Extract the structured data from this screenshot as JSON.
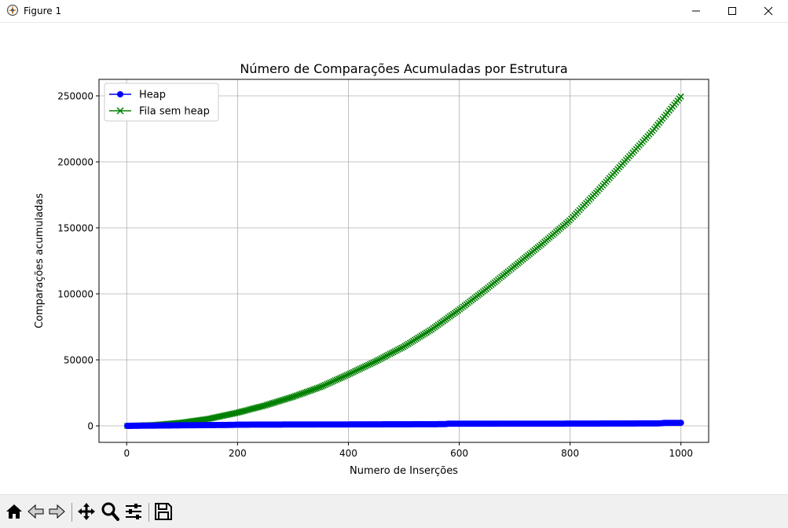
{
  "window": {
    "title": "Figure 1",
    "controls": [
      "minimize",
      "maximize",
      "close"
    ]
  },
  "toolbar": {
    "icons": [
      "home-icon",
      "back-icon",
      "forward-icon",
      "pan-icon",
      "zoom-icon",
      "configure-subplots-icon",
      "save-icon"
    ]
  },
  "chart_data": {
    "type": "line",
    "title": "Número de Comparações Acumuladas por Estrutura",
    "xlabel": "Numero de Inserções",
    "ylabel": "Comparações acumuladas",
    "xlim": [
      -50,
      1050
    ],
    "ylim": [
      -12500,
      262500
    ],
    "xticks": [
      0,
      200,
      400,
      600,
      800,
      1000
    ],
    "xtick_labels": [
      "0",
      "200",
      "400",
      "600",
      "800",
      "1000"
    ],
    "yticks": [
      0,
      50000,
      100000,
      150000,
      200000,
      250000
    ],
    "ytick_labels": [
      "0",
      "50000",
      "100000",
      "150000",
      "200000",
      "250000"
    ],
    "grid": true,
    "legend": "top-left",
    "series": [
      {
        "name": "Heap",
        "color": "#0000ff",
        "marker": "o",
        "x": [
          1,
          50,
          100,
          150,
          190,
          200,
          300,
          400,
          500,
          575,
          580,
          700,
          800,
          900,
          960,
          970,
          1000
        ],
        "y": [
          0,
          200,
          400,
          600,
          700,
          900,
          1000,
          1100,
          1200,
          1300,
          1600,
          1650,
          1700,
          1800,
          1850,
          2200,
          2300
        ]
      },
      {
        "name": "Fila sem heap",
        "color": "#008000",
        "marker": "x",
        "x": [
          1,
          50,
          100,
          150,
          200,
          250,
          300,
          350,
          400,
          450,
          500,
          550,
          600,
          650,
          700,
          750,
          800,
          850,
          900,
          950,
          1000
        ],
        "y": [
          0,
          700,
          2500,
          5500,
          10000,
          15500,
          22000,
          29500,
          39000,
          49000,
          60000,
          73000,
          88000,
          104000,
          121000,
          138000,
          156000,
          178000,
          201000,
          224000,
          249500
        ]
      }
    ]
  }
}
